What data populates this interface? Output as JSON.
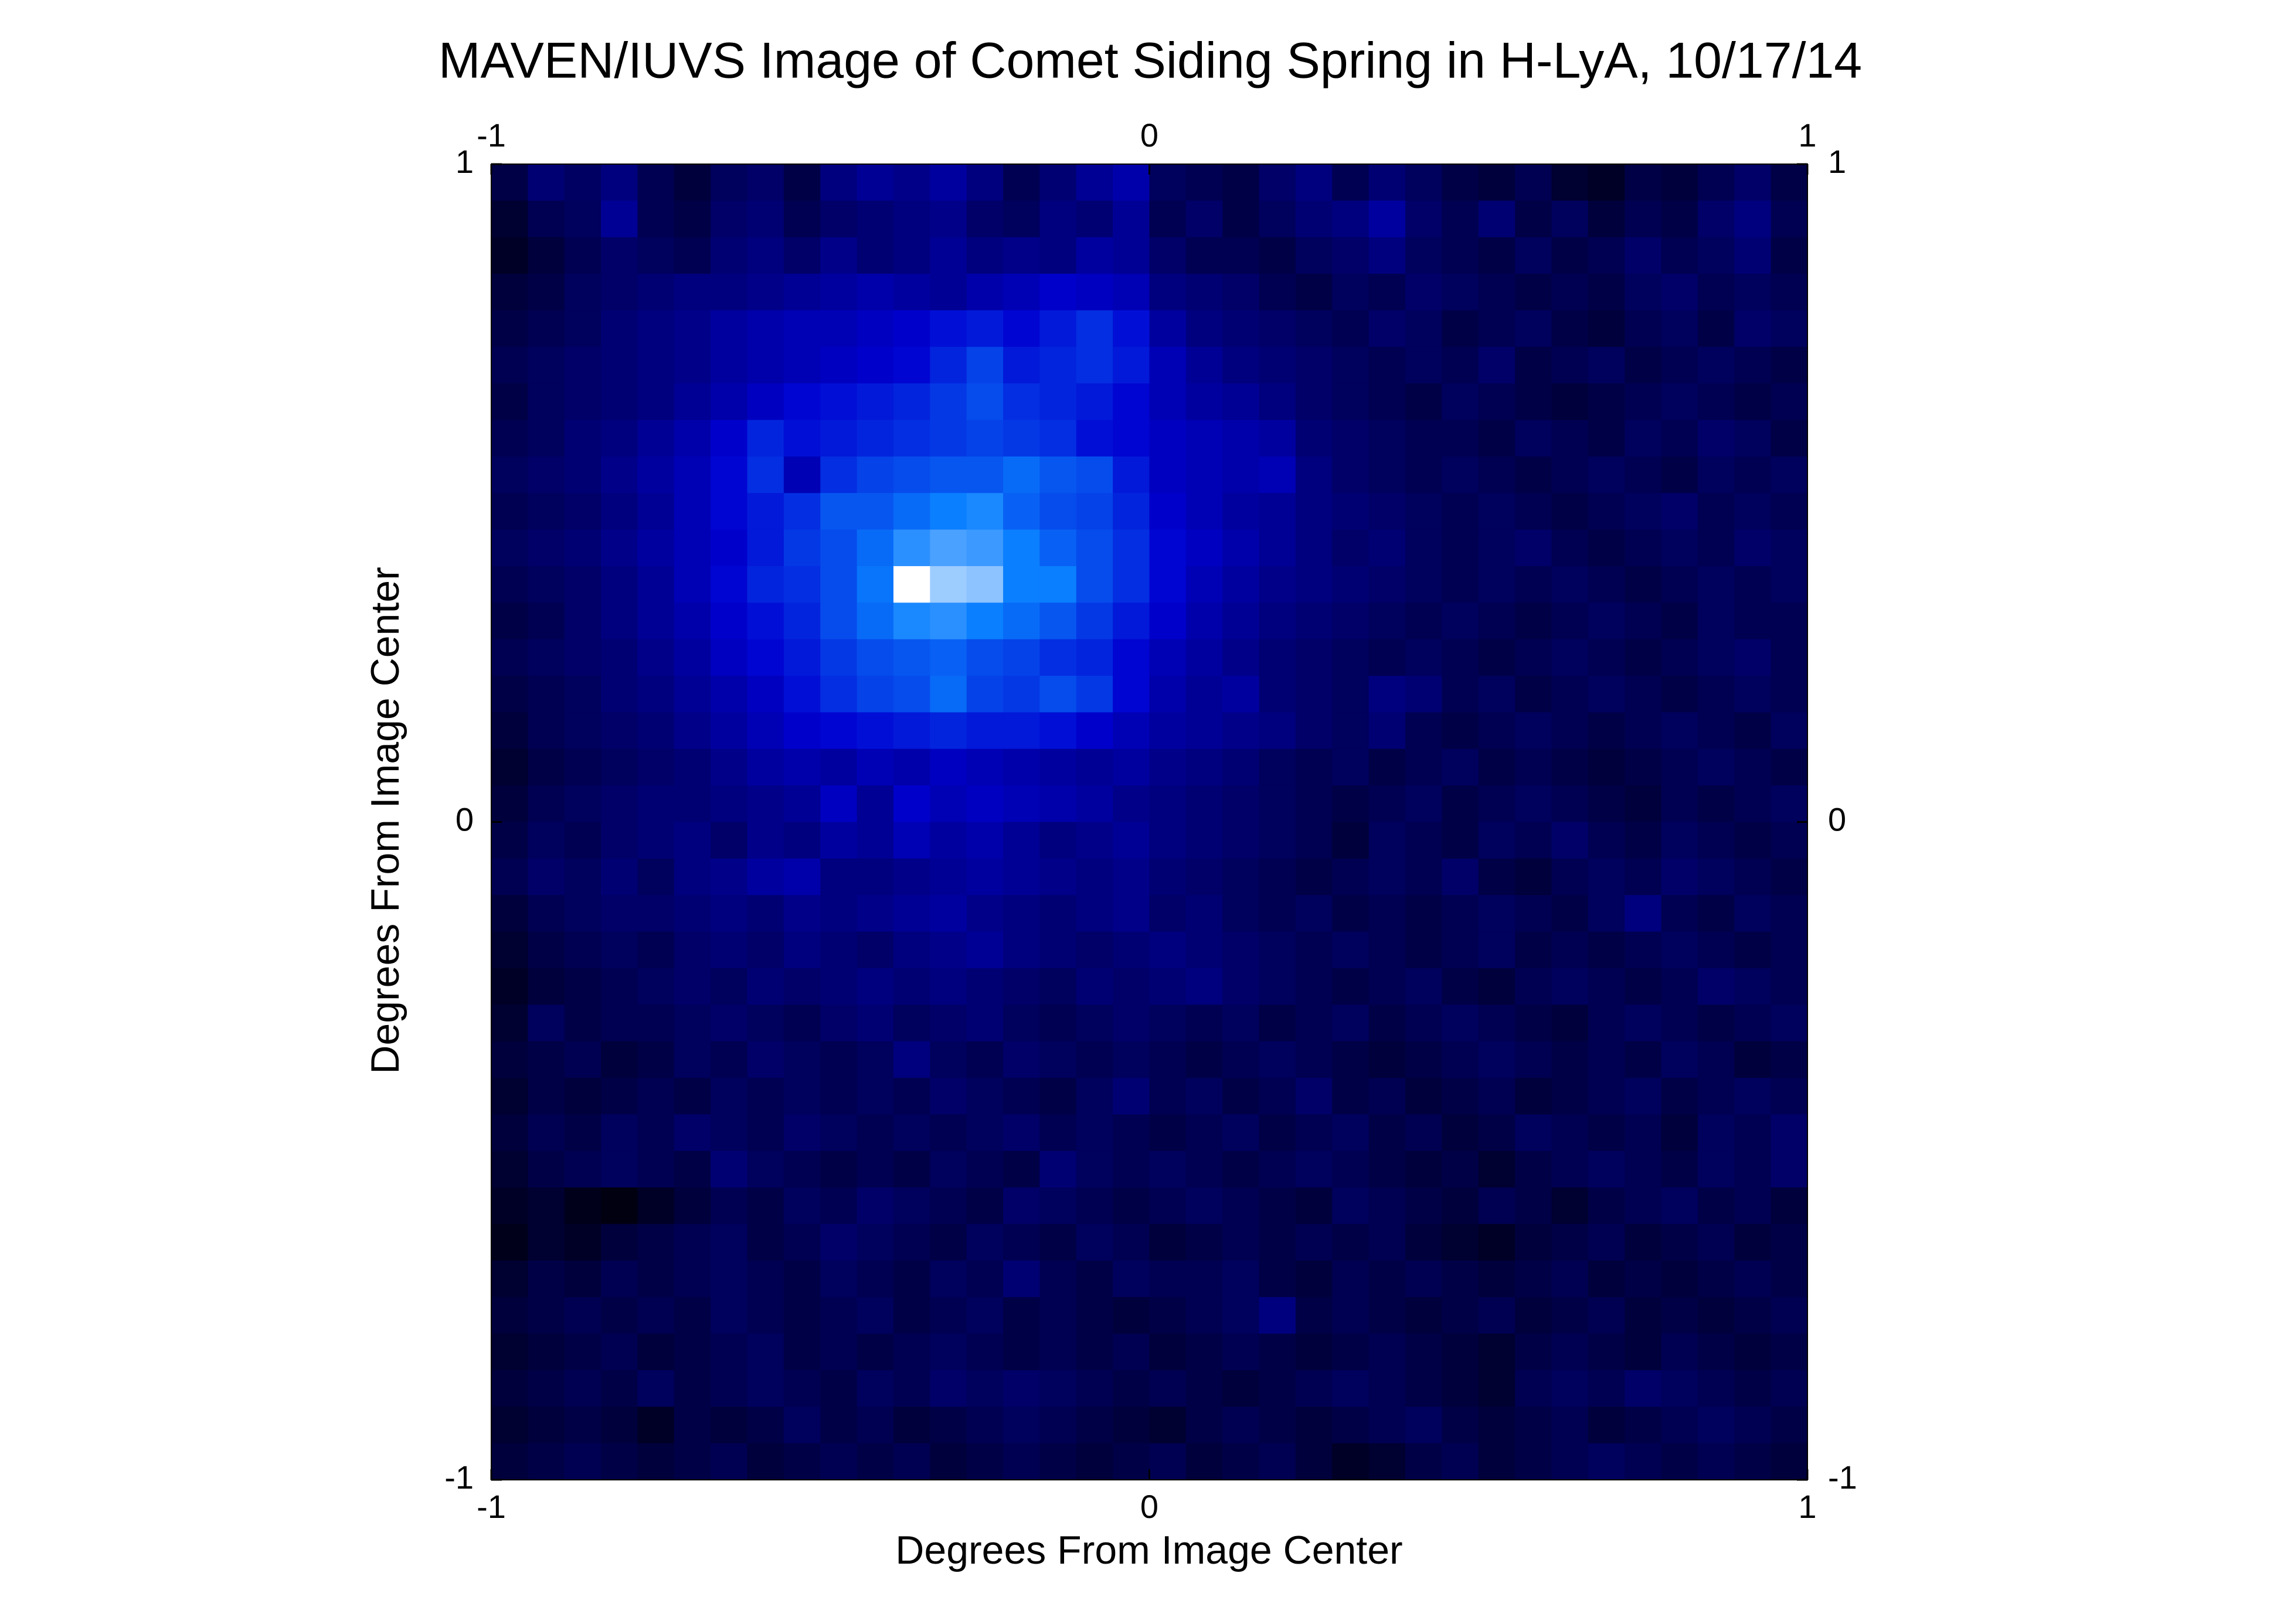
{
  "chart_data": {
    "type": "heatmap",
    "title": "MAVEN/IUVS Image of Comet Siding Spring in H-LyA, 10/17/14",
    "x_label": "Degrees From Image Center",
    "y_label": "Degrees From Image Center",
    "xlim": [
      -1,
      1
    ],
    "ylim": [
      -1,
      1
    ],
    "xticks": [
      -1,
      0,
      1
    ],
    "yticks": [
      -1,
      0,
      1
    ],
    "colorscale": [
      [
        10,
        "#000010"
      ],
      [
        45,
        "#0000d0"
      ],
      [
        70,
        "#0a7fff"
      ],
      [
        100,
        "#ffffff"
      ]
    ],
    "z": [
      [
        20,
        28,
        25,
        30,
        22,
        18,
        24,
        26,
        20,
        30,
        34,
        32,
        36,
        30,
        22,
        28,
        34,
        38,
        24,
        22,
        20,
        26,
        30,
        22,
        28,
        24,
        20,
        18,
        22,
        16,
        14,
        20,
        18,
        22,
        26,
        20
      ],
      [
        16,
        22,
        24,
        34,
        22,
        20,
        26,
        28,
        22,
        26,
        28,
        30,
        32,
        26,
        24,
        30,
        28,
        34,
        22,
        26,
        20,
        24,
        28,
        30,
        36,
        26,
        22,
        28,
        20,
        24,
        18,
        22,
        20,
        26,
        30,
        22
      ],
      [
        14,
        18,
        22,
        26,
        24,
        22,
        28,
        30,
        26,
        32,
        28,
        30,
        34,
        30,
        32,
        30,
        36,
        34,
        26,
        22,
        22,
        20,
        24,
        26,
        30,
        24,
        22,
        20,
        24,
        20,
        22,
        26,
        22,
        24,
        28,
        20
      ],
      [
        18,
        20,
        24,
        26,
        28,
        30,
        30,
        32,
        34,
        36,
        38,
        36,
        34,
        38,
        40,
        44,
        42,
        40,
        30,
        28,
        26,
        22,
        20,
        24,
        22,
        26,
        24,
        22,
        20,
        22,
        20,
        24,
        26,
        22,
        24,
        22
      ],
      [
        20,
        22,
        24,
        28,
        30,
        32,
        36,
        38,
        40,
        40,
        42,
        44,
        48,
        50,
        46,
        50,
        54,
        48,
        36,
        30,
        28,
        26,
        24,
        22,
        26,
        24,
        20,
        22,
        24,
        20,
        18,
        22,
        24,
        20,
        26,
        24
      ],
      [
        22,
        24,
        26,
        28,
        30,
        32,
        36,
        38,
        40,
        42,
        44,
        46,
        52,
        58,
        50,
        52,
        54,
        50,
        40,
        34,
        30,
        28,
        26,
        24,
        22,
        24,
        22,
        26,
        20,
        22,
        24,
        20,
        22,
        24,
        22,
        20
      ],
      [
        20,
        24,
        26,
        28,
        30,
        34,
        38,
        42,
        46,
        48,
        50,
        52,
        56,
        60,
        54,
        52,
        50,
        46,
        40,
        36,
        34,
        30,
        26,
        24,
        22,
        20,
        24,
        22,
        20,
        18,
        20,
        22,
        24,
        22,
        20,
        22
      ],
      [
        22,
        24,
        28,
        30,
        34,
        38,
        44,
        52,
        48,
        50,
        52,
        54,
        56,
        58,
        56,
        54,
        48,
        46,
        42,
        40,
        38,
        36,
        28,
        26,
        24,
        22,
        22,
        20,
        24,
        22,
        20,
        24,
        22,
        26,
        24,
        20
      ],
      [
        24,
        26,
        28,
        32,
        36,
        40,
        46,
        54,
        40,
        54,
        58,
        60,
        62,
        62,
        66,
        62,
        60,
        50,
        42,
        40,
        38,
        40,
        30,
        26,
        24,
        22,
        24,
        22,
        20,
        22,
        24,
        22,
        20,
        24,
        22,
        24
      ],
      [
        22,
        24,
        26,
        30,
        34,
        40,
        46,
        50,
        54,
        62,
        62,
        66,
        70,
        72,
        64,
        60,
        58,
        52,
        44,
        40,
        36,
        34,
        30,
        28,
        26,
        24,
        22,
        24,
        22,
        20,
        22,
        24,
        26,
        22,
        24,
        22
      ],
      [
        24,
        26,
        28,
        32,
        36,
        40,
        44,
        50,
        56,
        60,
        66,
        74,
        78,
        76,
        70,
        64,
        60,
        54,
        46,
        42,
        38,
        34,
        30,
        26,
        28,
        24,
        22,
        24,
        26,
        22,
        20,
        22,
        24,
        22,
        26,
        24
      ],
      [
        22,
        24,
        26,
        30,
        34,
        40,
        46,
        52,
        54,
        60,
        68,
        100,
        88,
        86,
        70,
        70,
        60,
        54,
        46,
        40,
        36,
        32,
        30,
        28,
        26,
        24,
        22,
        24,
        22,
        24,
        22,
        20,
        22,
        24,
        22,
        24
      ],
      [
        20,
        22,
        26,
        30,
        34,
        38,
        44,
        48,
        52,
        60,
        66,
        72,
        74,
        70,
        66,
        62,
        56,
        50,
        44,
        38,
        34,
        30,
        28,
        26,
        24,
        22,
        24,
        22,
        20,
        22,
        24,
        22,
        20,
        24,
        22,
        22
      ],
      [
        22,
        24,
        26,
        28,
        32,
        36,
        42,
        46,
        50,
        56,
        60,
        62,
        64,
        60,
        58,
        54,
        52,
        46,
        40,
        36,
        32,
        28,
        26,
        24,
        22,
        24,
        22,
        20,
        22,
        24,
        22,
        20,
        22,
        24,
        26,
        22
      ],
      [
        20,
        22,
        24,
        28,
        30,
        34,
        38,
        42,
        48,
        54,
        58,
        60,
        66,
        58,
        56,
        60,
        56,
        46,
        38,
        34,
        36,
        28,
        26,
        24,
        30,
        28,
        22,
        24,
        20,
        22,
        24,
        22,
        20,
        22,
        24,
        22
      ],
      [
        18,
        22,
        24,
        26,
        28,
        32,
        36,
        40,
        44,
        46,
        48,
        50,
        52,
        50,
        50,
        48,
        44,
        40,
        36,
        34,
        32,
        30,
        26,
        24,
        28,
        22,
        20,
        22,
        24,
        22,
        20,
        22,
        24,
        22,
        20,
        24
      ],
      [
        16,
        20,
        22,
        24,
        26,
        28,
        32,
        36,
        38,
        36,
        40,
        38,
        42,
        40,
        38,
        36,
        34,
        36,
        32,
        30,
        28,
        24,
        22,
        24,
        20,
        22,
        24,
        20,
        22,
        20,
        18,
        20,
        22,
        24,
        22,
        20
      ],
      [
        18,
        22,
        24,
        26,
        28,
        28,
        30,
        32,
        34,
        42,
        34,
        44,
        40,
        42,
        40,
        38,
        36,
        32,
        30,
        28,
        26,
        24,
        22,
        20,
        22,
        24,
        20,
        22,
        24,
        22,
        20,
        18,
        22,
        20,
        22,
        24
      ],
      [
        20,
        24,
        22,
        26,
        28,
        30,
        26,
        32,
        30,
        36,
        34,
        40,
        36,
        38,
        34,
        30,
        32,
        34,
        30,
        28,
        26,
        24,
        22,
        18,
        24,
        22,
        20,
        24,
        22,
        26,
        22,
        20,
        24,
        22,
        20,
        22
      ],
      [
        22,
        26,
        24,
        28,
        24,
        30,
        32,
        36,
        38,
        30,
        30,
        32,
        34,
        36,
        34,
        32,
        30,
        32,
        28,
        26,
        24,
        22,
        20,
        22,
        24,
        22,
        26,
        20,
        18,
        22,
        24,
        22,
        26,
        24,
        22,
        20
      ],
      [
        18,
        22,
        24,
        26,
        26,
        28,
        30,
        28,
        32,
        30,
        32,
        34,
        36,
        32,
        30,
        28,
        30,
        32,
        26,
        28,
        24,
        22,
        24,
        20,
        22,
        20,
        22,
        24,
        22,
        20,
        24,
        30,
        22,
        20,
        24,
        22
      ],
      [
        16,
        20,
        22,
        24,
        22,
        26,
        28,
        26,
        30,
        28,
        26,
        30,
        32,
        34,
        30,
        28,
        26,
        28,
        30,
        28,
        26,
        24,
        22,
        24,
        22,
        20,
        22,
        24,
        20,
        22,
        20,
        22,
        24,
        22,
        20,
        22
      ],
      [
        14,
        18,
        20,
        22,
        24,
        26,
        24,
        28,
        26,
        28,
        30,
        28,
        30,
        28,
        26,
        24,
        28,
        26,
        28,
        30,
        26,
        24,
        22,
        20,
        22,
        24,
        20,
        18,
        22,
        24,
        22,
        20,
        22,
        26,
        24,
        22
      ],
      [
        16,
        24,
        20,
        22,
        22,
        24,
        26,
        24,
        22,
        26,
        28,
        24,
        26,
        28,
        24,
        22,
        24,
        26,
        24,
        22,
        24,
        20,
        22,
        24,
        20,
        22,
        24,
        22,
        20,
        18,
        22,
        24,
        22,
        20,
        22,
        24
      ],
      [
        18,
        20,
        22,
        18,
        20,
        24,
        22,
        26,
        24,
        22,
        24,
        30,
        24,
        22,
        26,
        24,
        22,
        24,
        22,
        20,
        22,
        24,
        22,
        20,
        18,
        20,
        22,
        24,
        22,
        20,
        22,
        20,
        24,
        22,
        18,
        20
      ],
      [
        16,
        20,
        18,
        20,
        22,
        20,
        24,
        22,
        24,
        22,
        24,
        22,
        26,
        24,
        22,
        20,
        24,
        28,
        22,
        24,
        20,
        22,
        26,
        20,
        22,
        18,
        20,
        22,
        18,
        20,
        22,
        24,
        20,
        22,
        24,
        22
      ],
      [
        18,
        22,
        20,
        24,
        22,
        26,
        24,
        22,
        26,
        24,
        22,
        24,
        22,
        24,
        26,
        22,
        24,
        22,
        20,
        22,
        24,
        20,
        22,
        24,
        20,
        22,
        18,
        20,
        24,
        22,
        20,
        22,
        18,
        24,
        22,
        26
      ],
      [
        16,
        20,
        22,
        24,
        22,
        20,
        28,
        24,
        22,
        20,
        22,
        20,
        24,
        22,
        20,
        28,
        24,
        22,
        24,
        22,
        20,
        22,
        24,
        22,
        20,
        18,
        20,
        16,
        20,
        22,
        24,
        22,
        20,
        24,
        22,
        26
      ],
      [
        14,
        16,
        12,
        10,
        14,
        18,
        22,
        20,
        24,
        22,
        26,
        24,
        22,
        20,
        26,
        24,
        22,
        20,
        22,
        24,
        22,
        20,
        18,
        24,
        22,
        20,
        18,
        22,
        20,
        16,
        20,
        22,
        24,
        20,
        22,
        18
      ],
      [
        12,
        16,
        14,
        18,
        20,
        22,
        24,
        20,
        22,
        26,
        24,
        22,
        20,
        24,
        22,
        20,
        24,
        22,
        18,
        20,
        22,
        20,
        22,
        20,
        22,
        18,
        16,
        14,
        18,
        20,
        22,
        18,
        20,
        22,
        18,
        20
      ],
      [
        16,
        20,
        18,
        22,
        20,
        22,
        24,
        22,
        20,
        24,
        22,
        20,
        24,
        22,
        28,
        22,
        20,
        24,
        22,
        22,
        24,
        20,
        18,
        22,
        20,
        22,
        20,
        18,
        20,
        22,
        18,
        20,
        18,
        20,
        22,
        20
      ],
      [
        18,
        20,
        22,
        20,
        22,
        20,
        24,
        22,
        20,
        22,
        24,
        20,
        22,
        24,
        20,
        22,
        20,
        18,
        20,
        22,
        24,
        30,
        20,
        22,
        20,
        18,
        20,
        22,
        18,
        20,
        22,
        18,
        20,
        18,
        20,
        22
      ],
      [
        16,
        18,
        20,
        22,
        18,
        20,
        22,
        24,
        20,
        22,
        20,
        22,
        24,
        22,
        20,
        22,
        20,
        22,
        18,
        20,
        22,
        20,
        18,
        20,
        22,
        20,
        18,
        16,
        20,
        22,
        20,
        18,
        22,
        20,
        18,
        20
      ],
      [
        18,
        20,
        22,
        20,
        24,
        20,
        22,
        24,
        22,
        20,
        24,
        22,
        26,
        24,
        26,
        24,
        22,
        20,
        22,
        20,
        18,
        20,
        22,
        24,
        22,
        20,
        18,
        16,
        22,
        24,
        22,
        26,
        24,
        22,
        20,
        22
      ],
      [
        16,
        18,
        20,
        18,
        14,
        20,
        18,
        20,
        24,
        20,
        22,
        18,
        20,
        22,
        24,
        22,
        20,
        18,
        16,
        20,
        22,
        20,
        18,
        20,
        22,
        24,
        20,
        18,
        20,
        22,
        18,
        20,
        22,
        24,
        22,
        20
      ],
      [
        18,
        20,
        22,
        20,
        18,
        20,
        22,
        18,
        20,
        22,
        20,
        22,
        18,
        20,
        22,
        20,
        18,
        20,
        22,
        18,
        20,
        22,
        18,
        14,
        16,
        20,
        22,
        18,
        20,
        22,
        24,
        22,
        20,
        22,
        20,
        18
      ]
    ]
  }
}
